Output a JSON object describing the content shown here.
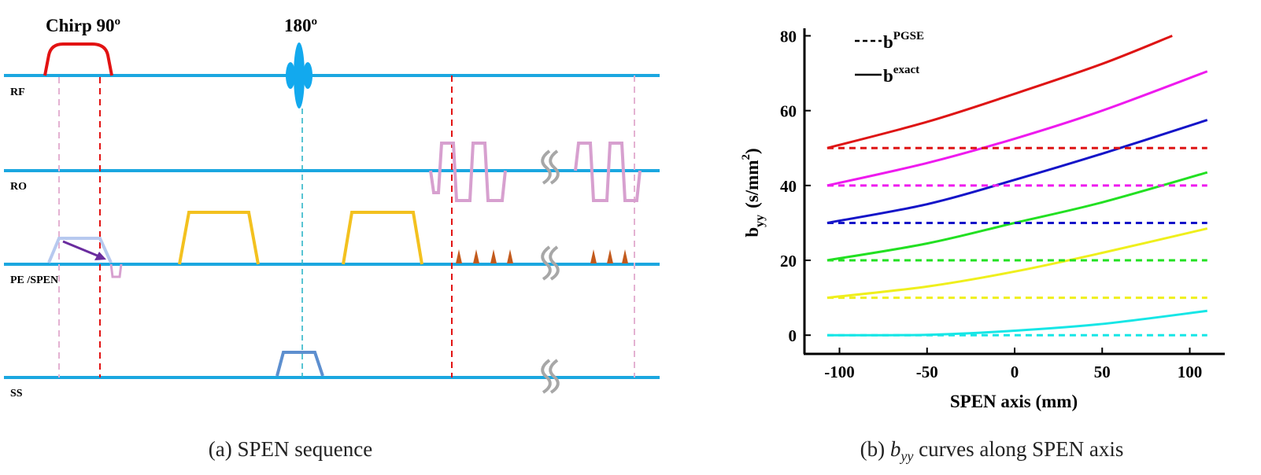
{
  "panel_a": {
    "pulse_labels": {
      "chirp90": "Chirp 90º",
      "refocus180": "180º"
    },
    "channels": {
      "rf": "RF",
      "ro": "RO",
      "pe": "PE /SPEN",
      "ss": "SS"
    },
    "caption": "(a) SPEN sequence",
    "colors": {
      "axis_line": "#1BA7E0",
      "chirp": "#E21212",
      "refocus": "#12A9EE",
      "ro_readout": "#D7A0CF",
      "diffusion_gradient": "#F3C11F",
      "blips": "#C35A1C",
      "prephaser": "#B7C9EF",
      "ss_gradient": "#5D8FCF",
      "arrow": "#6A2C9E"
    }
  },
  "panel_b": {
    "caption_prefix": "(b) ",
    "caption_symbol": "b",
    "caption_subscript": "yy",
    "caption_suffix": " curves along SPEN axis",
    "legend": {
      "dashed_base": "b",
      "dashed_sup": "PGSE",
      "solid_base": "b",
      "solid_sup": "exact"
    },
    "axis_labels": {
      "x": "SPEN axis (mm)",
      "y_base": "b",
      "y_sub": "yy",
      "y_unit_open": "(s/mm",
      "y_unit_sup": "2",
      "y_unit_close": ")"
    }
  },
  "chart_data": {
    "type": "line",
    "title": "",
    "xlabel": "SPEN axis (mm)",
    "ylabel": "b_yy (s/mm^2)",
    "xlim": [
      -120,
      120
    ],
    "ylim": [
      -5,
      82
    ],
    "xticks": [
      -100,
      -50,
      0,
      50,
      100
    ],
    "yticks": [
      0,
      20,
      40,
      60,
      80
    ],
    "grid": false,
    "legend_position": "top-left",
    "series": [
      {
        "name": "b_PGSE (0)",
        "style": "dashed",
        "color": "#16E6E6",
        "x": [
          -107,
          110
        ],
        "y": [
          0,
          0
        ]
      },
      {
        "name": "b_exact (0)",
        "style": "solid",
        "color": "#16E6E6",
        "x": [
          -107,
          -50,
          0,
          50,
          110
        ],
        "y": [
          0,
          0.1,
          1.2,
          3.0,
          6.5
        ]
      },
      {
        "name": "b_PGSE (10)",
        "style": "dashed",
        "color": "#EFEF1C",
        "x": [
          -107,
          110
        ],
        "y": [
          10,
          10
        ]
      },
      {
        "name": "b_exact (10)",
        "style": "solid",
        "color": "#EFEF1C",
        "x": [
          -107,
          -50,
          0,
          50,
          110
        ],
        "y": [
          10,
          13,
          17,
          22,
          28.5
        ]
      },
      {
        "name": "b_PGSE (20)",
        "style": "dashed",
        "color": "#22E022",
        "x": [
          -107,
          110
        ],
        "y": [
          20,
          20
        ]
      },
      {
        "name": "b_exact (20)",
        "style": "solid",
        "color": "#22E022",
        "x": [
          -107,
          -50,
          0,
          50,
          110
        ],
        "y": [
          20,
          24.5,
          30,
          35.5,
          43.5
        ]
      },
      {
        "name": "b_PGSE (30)",
        "style": "dashed",
        "color": "#1414C8",
        "x": [
          -107,
          110
        ],
        "y": [
          30,
          30
        ]
      },
      {
        "name": "b_exact (30)",
        "style": "solid",
        "color": "#1414C8",
        "x": [
          -107,
          -50,
          0,
          50,
          110
        ],
        "y": [
          30,
          35,
          41.5,
          48.5,
          57.5
        ]
      },
      {
        "name": "b_PGSE (40)",
        "style": "dashed",
        "color": "#EE1AEE",
        "x": [
          -107,
          110
        ],
        "y": [
          40,
          40
        ]
      },
      {
        "name": "b_exact (40)",
        "style": "solid",
        "color": "#EE1AEE",
        "x": [
          -107,
          -50,
          0,
          50,
          110
        ],
        "y": [
          40,
          46,
          52.5,
          60,
          70.5
        ]
      },
      {
        "name": "b_PGSE (50)",
        "style": "dashed",
        "color": "#DE1414",
        "x": [
          -107,
          110
        ],
        "y": [
          50,
          50
        ]
      },
      {
        "name": "b_exact (50)",
        "style": "solid",
        "color": "#DE1414",
        "x": [
          -107,
          -50,
          0,
          50,
          90
        ],
        "y": [
          50,
          57,
          64.5,
          72.5,
          80
        ]
      }
    ]
  }
}
